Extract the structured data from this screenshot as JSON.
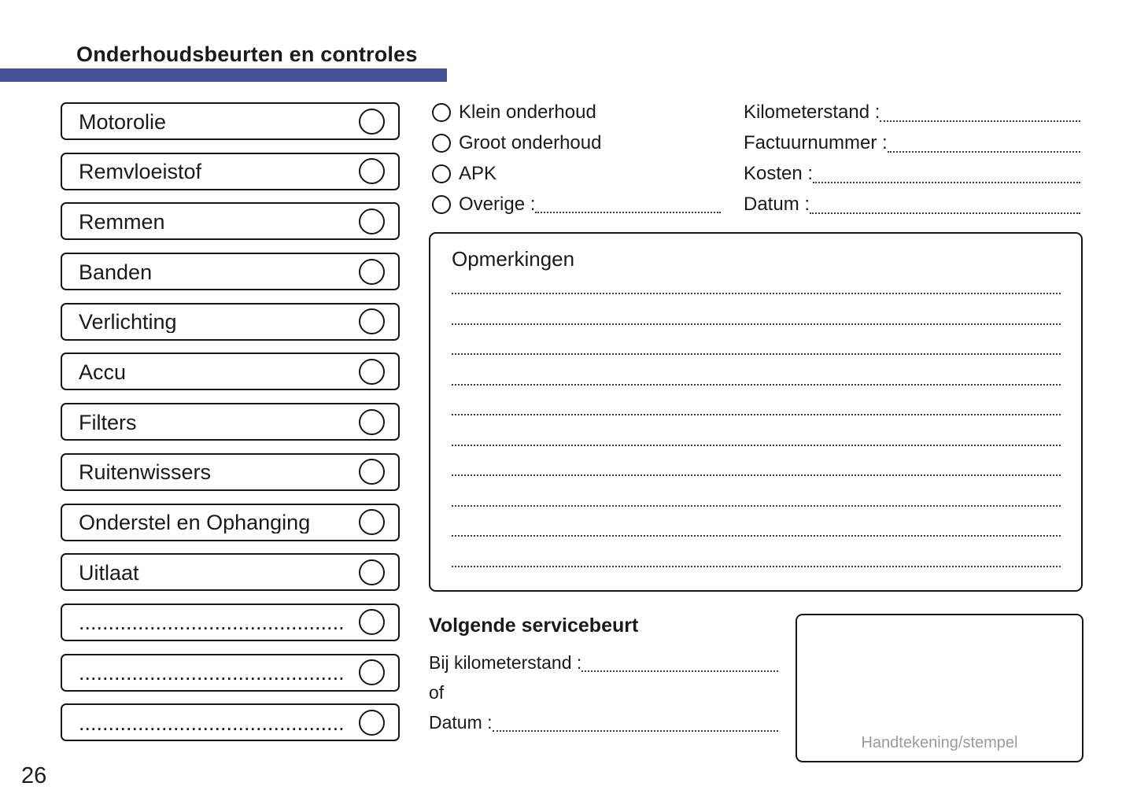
{
  "header": {
    "title": "Onderhoudsbeurten en controles",
    "accent_color": "#464f93"
  },
  "checklist": {
    "items": [
      {
        "label": "Motorolie"
      },
      {
        "label": "Remvloeistof"
      },
      {
        "label": "Remmen"
      },
      {
        "label": "Banden"
      },
      {
        "label": "Verlichting"
      },
      {
        "label": "Accu"
      },
      {
        "label": "Filters"
      },
      {
        "label": "Ruitenwissers"
      },
      {
        "label": "Onderstel en Ophanging"
      },
      {
        "label": "Uitlaat"
      },
      {
        "label": "............................................."
      },
      {
        "label": "............................................."
      },
      {
        "label": "............................................."
      }
    ]
  },
  "service_type": {
    "options": [
      {
        "label": "Klein onderhoud"
      },
      {
        "label": "Groot onderhoud"
      },
      {
        "label": "APK"
      },
      {
        "label": "Overige :"
      }
    ]
  },
  "invoice_fields": {
    "rows": [
      {
        "label": "Kilometerstand :"
      },
      {
        "label": "Factuurnummer :"
      },
      {
        "label": "Kosten :"
      },
      {
        "label": "Datum :"
      }
    ]
  },
  "remarks": {
    "title": "Opmerkingen",
    "line_count": 10
  },
  "next_service": {
    "title": "Volgende servicebeurt",
    "km_label": "Bij kilometerstand :",
    "or_label": "of",
    "date_label": "Datum :"
  },
  "signature": {
    "label": "Handtekening/stempel"
  },
  "footer": {
    "page_number": "26"
  }
}
